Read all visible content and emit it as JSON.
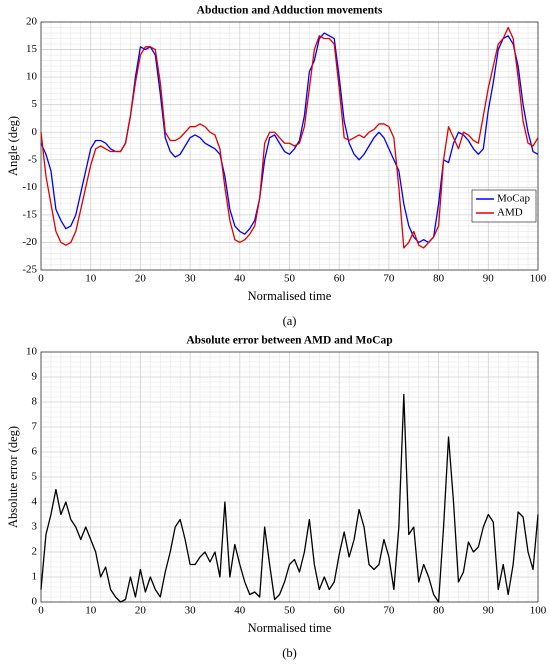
{
  "chart_data": [
    {
      "type": "line",
      "title": "Abduction and Adduction movements",
      "xlabel": "Normalised time",
      "ylabel": "Angle (deg)",
      "caption": "(a)",
      "x": [
        0,
        1,
        2,
        3,
        4,
        5,
        6,
        7,
        8,
        9,
        10,
        11,
        12,
        13,
        14,
        15,
        16,
        17,
        18,
        19,
        20,
        21,
        22,
        23,
        24,
        25,
        26,
        27,
        28,
        29,
        30,
        31,
        32,
        33,
        34,
        35,
        36,
        37,
        38,
        39,
        40,
        41,
        42,
        43,
        44,
        45,
        46,
        47,
        48,
        49,
        50,
        51,
        52,
        53,
        54,
        55,
        56,
        57,
        58,
        59,
        60,
        61,
        62,
        63,
        64,
        65,
        66,
        67,
        68,
        69,
        70,
        71,
        72,
        73,
        74,
        75,
        76,
        77,
        78,
        79,
        80,
        81,
        82,
        83,
        84,
        85,
        86,
        87,
        88,
        89,
        90,
        91,
        92,
        93,
        94,
        95,
        96,
        97,
        98,
        99,
        100
      ],
      "series": [
        {
          "name": "MoCap",
          "color": "#0000ff",
          "values": [
            -2,
            -4,
            -7,
            -14,
            -16,
            -17.5,
            -17,
            -15,
            -11,
            -7,
            -3,
            -1.5,
            -1.5,
            -2,
            -3,
            -3.5,
            -3.5,
            -2,
            3,
            10,
            15.5,
            15,
            15.5,
            14,
            7,
            -1,
            -3.5,
            -4.5,
            -4,
            -2.5,
            -1,
            -0.5,
            -1,
            -2,
            -2.5,
            -3,
            -4,
            -8,
            -14,
            -17,
            -18,
            -18.5,
            -17.5,
            -16,
            -12,
            -5,
            -1,
            -0.5,
            -2,
            -3.5,
            -4,
            -3,
            -1.5,
            3,
            11,
            13,
            17,
            18,
            17.5,
            17,
            10,
            2,
            -2,
            -4,
            -5,
            -4,
            -2.5,
            -1,
            0,
            -1,
            -3,
            -5,
            -7,
            -13,
            -17,
            -19,
            -20,
            -19.5,
            -20,
            -19,
            -13,
            -5,
            -5.5,
            -2,
            0,
            -0.5,
            -1.5,
            -3,
            -4,
            -3,
            4,
            9,
            15,
            17,
            17.5,
            16,
            12,
            5,
            0,
            -3.5,
            -4
          ]
        },
        {
          "name": "AMD",
          "color": "#e00000",
          "values": [
            0,
            -8,
            -13,
            -18,
            -20,
            -20.5,
            -20,
            -18,
            -14,
            -10,
            -6,
            -3,
            -2.5,
            -3,
            -3.5,
            -3.5,
            -3.5,
            -2,
            3,
            9,
            14,
            15.5,
            15.5,
            15,
            9,
            0,
            -1.5,
            -1.5,
            -1,
            0,
            1,
            1,
            1.5,
            1,
            0,
            -0.5,
            -3,
            -10,
            -16,
            -19.5,
            -20,
            -19.5,
            -18.5,
            -17,
            -12,
            -2,
            0,
            0,
            -1,
            -2,
            -2,
            -2.5,
            -2,
            1,
            8,
            15,
            17.5,
            17,
            17,
            16,
            8,
            -1,
            -1.5,
            -1,
            -0.5,
            -1,
            0,
            0.5,
            1.5,
            1.5,
            1,
            -1,
            -10,
            -21,
            -20,
            -18,
            -20.5,
            -21,
            -20,
            -19,
            -17,
            -5,
            1,
            -1,
            -3,
            0,
            -0.5,
            -1.5,
            -2,
            3,
            8,
            12,
            16,
            17,
            19,
            17,
            10,
            2,
            -2,
            -2.5,
            -1
          ]
        }
      ],
      "xlim": [
        0,
        100
      ],
      "xticks": [
        0,
        10,
        20,
        30,
        40,
        50,
        60,
        70,
        80,
        90,
        100
      ],
      "ylim": [
        -25,
        20
      ],
      "yticks": [
        -25,
        -20,
        -15,
        -10,
        -5,
        0,
        5,
        10,
        15,
        20
      ],
      "grid": true,
      "minor_grid": true,
      "legend": "lower right"
    },
    {
      "type": "line",
      "title": "Absolute error between AMD and MoCap",
      "xlabel": "Normalised time",
      "ylabel": "Absolute error (deg)",
      "caption": "(b)",
      "x": [
        0,
        1,
        2,
        3,
        4,
        5,
        6,
        7,
        8,
        9,
        10,
        11,
        12,
        13,
        14,
        15,
        16,
        17,
        18,
        19,
        20,
        21,
        22,
        23,
        24,
        25,
        26,
        27,
        28,
        29,
        30,
        31,
        32,
        33,
        34,
        35,
        36,
        37,
        38,
        39,
        40,
        41,
        42,
        43,
        44,
        45,
        46,
        47,
        48,
        49,
        50,
        51,
        52,
        53,
        54,
        55,
        56,
        57,
        58,
        59,
        60,
        61,
        62,
        63,
        64,
        65,
        66,
        67,
        68,
        69,
        70,
        71,
        72,
        73,
        74,
        75,
        76,
        77,
        78,
        79,
        80,
        81,
        82,
        83,
        84,
        85,
        86,
        87,
        88,
        89,
        90,
        91,
        92,
        93,
        94,
        95,
        96,
        97,
        98,
        99,
        100
      ],
      "series": [
        {
          "color": "#000000",
          "values": [
            0.5,
            2.7,
            3.5,
            4.5,
            3.5,
            4,
            3.3,
            3,
            2.5,
            3,
            2.5,
            2,
            1,
            1.4,
            0.5,
            0.2,
            0,
            0.1,
            1,
            0.2,
            1.3,
            0.4,
            1,
            0.5,
            0.2,
            1.2,
            2,
            3,
            3.3,
            2.5,
            1.5,
            1.5,
            1.8,
            2,
            1.6,
            2,
            1,
            4,
            1,
            2.3,
            1.5,
            0.8,
            0.3,
            0.4,
            0.2,
            3,
            1.5,
            0.1,
            0.3,
            0.8,
            1.5,
            1.7,
            1.2,
            2,
            3.3,
            1.5,
            0.5,
            1,
            0.5,
            0.8,
            1.9,
            2.8,
            1.8,
            2.5,
            3.7,
            3,
            1.5,
            1.3,
            1.5,
            2.5,
            1.8,
            0.5,
            3,
            8.3,
            2.7,
            3,
            0.8,
            1.5,
            1,
            0.3,
            0,
            3,
            6.6,
            4,
            0.8,
            1.2,
            2.4,
            2,
            2.2,
            3,
            3.5,
            3.2,
            0.5,
            1.5,
            0.3,
            1.5,
            3.6,
            3.4,
            2,
            1.3,
            3.5
          ]
        }
      ],
      "xlim": [
        0,
        100
      ],
      "xticks": [
        0,
        10,
        20,
        30,
        40,
        50,
        60,
        70,
        80,
        90,
        100
      ],
      "ylim": [
        0,
        10
      ],
      "yticks": [
        0,
        1,
        2,
        3,
        4,
        5,
        6,
        7,
        8,
        9,
        10
      ],
      "grid": true,
      "minor_grid": true
    }
  ]
}
